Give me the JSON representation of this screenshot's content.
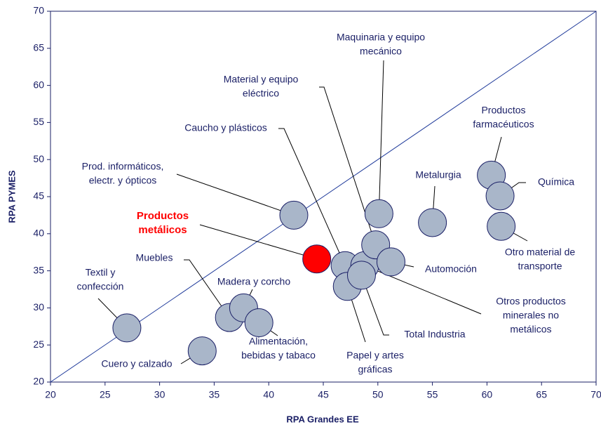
{
  "chart_data": {
    "type": "scatter",
    "xlabel": "RPA Grandes EE",
    "ylabel": "RPA PYMES",
    "xlim": [
      20,
      70
    ],
    "ylim": [
      20,
      70
    ],
    "xticks": [
      20,
      25,
      30,
      35,
      40,
      45,
      50,
      55,
      60,
      65,
      70
    ],
    "yticks": [
      20,
      25,
      30,
      35,
      40,
      45,
      50,
      55,
      60,
      65,
      70
    ],
    "reference_line": "y=x",
    "reference_color": "#1f3a9a",
    "points": [
      {
        "label": [
          "Textil y",
          "confección"
        ],
        "x": 27.0,
        "y": 27.3,
        "color": "#a9b6c9"
      },
      {
        "label": [
          "Cuero y calzado"
        ],
        "x": 33.9,
        "y": 24.2,
        "color": "#a9b6c9"
      },
      {
        "label": [
          "Muebles"
        ],
        "x": 36.4,
        "y": 28.7,
        "color": "#a9b6c9"
      },
      {
        "label": [
          "Madera y corcho"
        ],
        "x": 37.7,
        "y": 30.0,
        "color": "#a9b6c9"
      },
      {
        "label": [
          "Alimentación,",
          "bebidas y tabaco"
        ],
        "x": 39.1,
        "y": 28.0,
        "color": "#a9b6c9"
      },
      {
        "label": [
          "Prod. informáticos,",
          "electr. y ópticos"
        ],
        "x": 42.3,
        "y": 42.5,
        "color": "#a9b6c9"
      },
      {
        "label": [
          "Productos",
          "metálicos"
        ],
        "x": 44.4,
        "y": 36.6,
        "color": "#ff0000"
      },
      {
        "label": [
          "Caucho y plásticos"
        ],
        "x": 47.0,
        "y": 35.7,
        "color": "#a9b6c9"
      },
      {
        "label": [
          "Papel y artes",
          "gráficas"
        ],
        "x": 47.2,
        "y": 32.9,
        "color": "#a9b6c9"
      },
      {
        "label": [
          "Otros productos",
          "minerales no",
          "metálicos"
        ],
        "x": 48.8,
        "y": 35.7,
        "color": "#a9b6c9"
      },
      {
        "label": [
          "Total Industria"
        ],
        "x": 48.5,
        "y": 34.4,
        "color": "#a9b6c9"
      },
      {
        "label": [
          "Material y equipo",
          "eléctrico"
        ],
        "x": 49.8,
        "y": 38.5,
        "color": "#a9b6c9"
      },
      {
        "label": [
          "Maquinaria y equipo",
          "mecánico"
        ],
        "x": 50.1,
        "y": 42.7,
        "color": "#a9b6c9"
      },
      {
        "label": [
          "Automoción"
        ],
        "x": 51.2,
        "y": 36.2,
        "color": "#a9b6c9"
      },
      {
        "label": [
          "Metalurgia"
        ],
        "x": 55.0,
        "y": 41.5,
        "color": "#a9b6c9"
      },
      {
        "label": [
          "Productos",
          "farmacéuticos"
        ],
        "x": 60.4,
        "y": 47.9,
        "color": "#a9b6c9"
      },
      {
        "label": [
          "Química"
        ],
        "x": 61.2,
        "y": 45.1,
        "color": "#a9b6c9"
      },
      {
        "label": [
          "Otro material de",
          "transporte"
        ],
        "x": 61.3,
        "y": 41.0,
        "color": "#a9b6c9"
      }
    ]
  }
}
